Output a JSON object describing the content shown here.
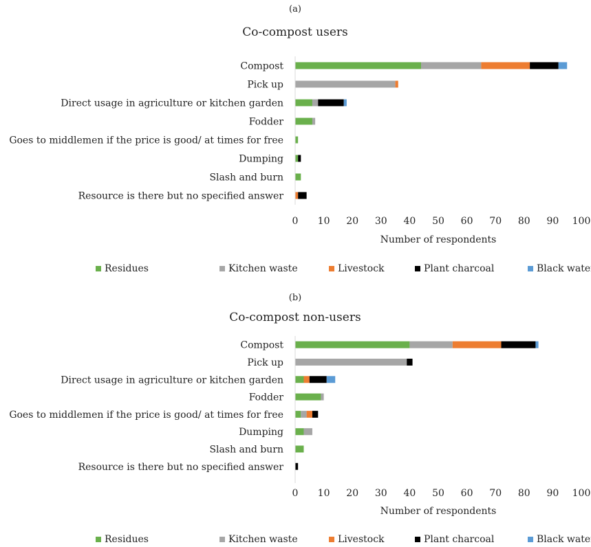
{
  "colors": {
    "Residues": "#6ab04c",
    "Kitchen waste": "#a6a6a6",
    "Livestock": "#ed7d31",
    "Plant charcoal": "#000000",
    "Black water": "#5b9bd5"
  },
  "chart_data": [
    {
      "type": "bar",
      "orientation": "horizontal",
      "stacked": true,
      "panel_label": "(a)",
      "title": "Co-compost users",
      "xlabel": "Number of respondents",
      "xlim": [
        0,
        100
      ],
      "xticks": [
        0,
        10,
        20,
        30,
        40,
        50,
        60,
        70,
        80,
        90,
        100
      ],
      "grid": false,
      "legend_position": "bottom",
      "categories": [
        "Compost",
        "Pick up",
        "Direct usage in agriculture or kitchen garden",
        "Fodder",
        "Goes to middlemen if the price is good/ at times for free",
        "Dumping",
        "Slash and burn",
        "Resource is there but no specified answer"
      ],
      "series": [
        {
          "name": "Residues",
          "values": [
            44,
            0,
            6,
            6,
            1,
            1,
            2,
            0
          ]
        },
        {
          "name": "Kitchen waste",
          "values": [
            21,
            35,
            2,
            1,
            0,
            0,
            0,
            0
          ]
        },
        {
          "name": "Livestock",
          "values": [
            17,
            1,
            0,
            0,
            0,
            0,
            0,
            1
          ]
        },
        {
          "name": "Plant charcoal",
          "values": [
            10,
            0,
            9,
            0,
            0,
            1,
            0,
            3
          ]
        },
        {
          "name": "Black water",
          "values": [
            3,
            0,
            1,
            0,
            0,
            0,
            0,
            0
          ]
        }
      ]
    },
    {
      "type": "bar",
      "orientation": "horizontal",
      "stacked": true,
      "panel_label": "(b)",
      "title": "Co-compost non-users",
      "xlabel": "Number of respondents",
      "xlim": [
        0,
        100
      ],
      "xticks": [
        0,
        10,
        20,
        30,
        40,
        50,
        60,
        70,
        80,
        90,
        100
      ],
      "grid": false,
      "legend_position": "bottom",
      "categories": [
        "Compost",
        "Pick up",
        "Direct usage in agriculture or kitchen garden",
        "Fodder",
        "Goes to middlemen if the price is good/ at times for free",
        "Dumping",
        "Slash and burn",
        "Resource is there but no specified answer"
      ],
      "series": [
        {
          "name": "Residues",
          "values": [
            40,
            0,
            3,
            9,
            2,
            3,
            3,
            0
          ]
        },
        {
          "name": "Kitchen waste",
          "values": [
            15,
            39,
            0,
            1,
            2,
            3,
            0,
            0
          ]
        },
        {
          "name": "Livestock",
          "values": [
            17,
            0,
            2,
            0,
            2,
            0,
            0,
            0
          ]
        },
        {
          "name": "Plant charcoal",
          "values": [
            12,
            2,
            6,
            0,
            2,
            0,
            0,
            1
          ]
        },
        {
          "name": "Black water",
          "values": [
            1,
            0,
            3,
            0,
            0,
            0,
            0,
            0
          ]
        }
      ]
    }
  ]
}
